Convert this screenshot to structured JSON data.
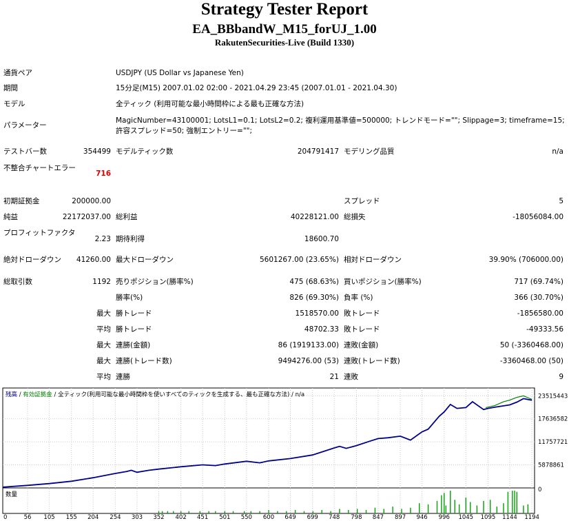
{
  "header": {
    "title": "Strategy Tester Report",
    "ea_name": "EA_BBbandW_M15_forUJ_1.00",
    "server": "RakutenSecurities-Live (Build 1330)"
  },
  "info": {
    "symbol_label": "通貨ペア",
    "symbol_value": "USDJPY (US Dollar vs Japanese Yen)",
    "period_label": "期間",
    "period_value": "15分足(M15) 2007.01.02 02:00 - 2021.04.29 23:45 (2007.01.01 - 2021.04.30)",
    "model_label": "モデル",
    "model_value": "全ティック (利用可能な最小時間枠による最も正確な方法)",
    "params_label": "パラメーター",
    "params_value": "MagicNumber=43100001; LotsL1=0.1; LotsL2=0.2; 複利運用基準値=500000; トレンドモード=\"\"; Slippage=3; timeframe=15; 許容スプレッド=50; 強制エントリー=\"\";"
  },
  "stats": {
    "bars_label": "テストバー数",
    "bars_value": "354499",
    "ticks_label": "モデルティック数",
    "ticks_value": "204791417",
    "quality_label": "モデリング品質",
    "quality_value": "n/a",
    "mismatch_label": "不整合チャートエラー",
    "mismatch_value": "716",
    "deposit_label": "初期証拠金",
    "deposit_value": "200000.00",
    "spread_label": "スプレッド",
    "spread_value": "5",
    "net_label": "純益",
    "net_value": "22172037.00",
    "gross_profit_label": "総利益",
    "gross_profit_value": "40228121.00",
    "gross_loss_label": "総損失",
    "gross_loss_value": "-18056084.00",
    "pf_label": "プロフィットファクタ",
    "pf_value": "2.23",
    "payoff_label": "期待利得",
    "payoff_value": "18600.70",
    "abs_dd_label": "絶対ドローダウン",
    "abs_dd_value": "41260.00",
    "max_dd_label": "最大ドローダウン",
    "max_dd_value": "5601267.00 (23.65%)",
    "rel_dd_label": "相対ドローダウン",
    "rel_dd_value": "39.90% (706000.00)",
    "trades_label": "総取引数",
    "trades_value": "1192",
    "short_label": "売りポジション(勝率%)",
    "short_value": "475 (68.63%)",
    "long_label": "買いポジション(勝率%)",
    "long_value": "717 (69.74%)",
    "winrate_label": "勝率(%)",
    "winrate_value": "826 (69.30%)",
    "lossrate_label": "負率 (%)",
    "lossrate_value": "366 (30.70%)",
    "max_prefix": "最大",
    "avg_prefix": "平均",
    "largest_win_label": "勝トレード",
    "largest_win_value": "1518570.00",
    "largest_loss_label": "敗トレード",
    "largest_loss_value": "-1856580.00",
    "avg_win_label": "勝トレード",
    "avg_win_value": "48702.33",
    "avg_loss_label": "敗トレード",
    "avg_loss_value": "-49333.56",
    "max_cons_wins_label": "連勝(金額)",
    "max_cons_wins_value": "86 (1919133.00)",
    "max_cons_losses_label": "連敗(金額)",
    "max_cons_losses_value": "50 (-3360468.00)",
    "max_cons_profit_label": "連勝(トレード数)",
    "max_cons_profit_value": "9494276.00 (53)",
    "max_cons_loss_label": "連敗(トレード数)",
    "max_cons_loss_value": "-3360468.00 (50)",
    "avg_cons_wins_label": "連勝",
    "avg_cons_wins_value": "21",
    "avg_cons_losses_label": "連敗",
    "avg_cons_losses_value": "9"
  },
  "chart_data": {
    "type": "line",
    "legend": {
      "balance": "残高",
      "sep1": " / ",
      "equity": "有効証拠金",
      "sep2": " / ",
      "model": "全ティック(利用可能な最小時間枠を使いすべてのティックを生成する、最も正確な方法)",
      "sep3": " / ",
      "quality": "n/a"
    },
    "volume_label": "数量",
    "colors": {
      "balance": "#00008b",
      "equity": "#008000",
      "volume": "#00a000",
      "grid": "#c8c8c8"
    },
    "y_ticks": [
      0,
      5878861,
      11757721,
      17636582,
      23515443
    ],
    "x_ticks": [
      0,
      56,
      105,
      155,
      204,
      254,
      303,
      352,
      402,
      451,
      501,
      550,
      600,
      649,
      699,
      748,
      798,
      847,
      897,
      946,
      996,
      1045,
      1095,
      1144,
      1194
    ],
    "xlim": [
      0,
      1200
    ],
    "ylim": [
      0,
      25500000
    ],
    "balance": [
      [
        0,
        200000
      ],
      [
        56,
        650000
      ],
      [
        105,
        1100000
      ],
      [
        155,
        1700000
      ],
      [
        204,
        2600000
      ],
      [
        254,
        3700000
      ],
      [
        280,
        4200000
      ],
      [
        290,
        4500000
      ],
      [
        303,
        4000000
      ],
      [
        330,
        4500000
      ],
      [
        352,
        4800000
      ],
      [
        402,
        5400000
      ],
      [
        451,
        5900000
      ],
      [
        480,
        5700000
      ],
      [
        501,
        6100000
      ],
      [
        550,
        6800000
      ],
      [
        580,
        6400000
      ],
      [
        600,
        6900000
      ],
      [
        649,
        7500000
      ],
      [
        699,
        8400000
      ],
      [
        748,
        10200000
      ],
      [
        760,
        10600000
      ],
      [
        775,
        10100000
      ],
      [
        798,
        10800000
      ],
      [
        830,
        12000000
      ],
      [
        847,
        12600000
      ],
      [
        870,
        12800000
      ],
      [
        897,
        13200000
      ],
      [
        920,
        12200000
      ],
      [
        946,
        14300000
      ],
      [
        960,
        15000000
      ],
      [
        985,
        18300000
      ],
      [
        996,
        19400000
      ],
      [
        1010,
        21300000
      ],
      [
        1025,
        20300000
      ],
      [
        1045,
        20500000
      ],
      [
        1060,
        22000000
      ],
      [
        1085,
        20000000
      ],
      [
        1095,
        20300000
      ],
      [
        1110,
        20600000
      ],
      [
        1144,
        21200000
      ],
      [
        1160,
        21900000
      ],
      [
        1175,
        22800000
      ],
      [
        1194,
        22372037
      ]
    ],
    "equity": [
      [
        1090,
        20500000
      ],
      [
        1110,
        21000000
      ],
      [
        1130,
        22000000
      ],
      [
        1144,
        22400000
      ],
      [
        1160,
        23100000
      ],
      [
        1175,
        23500000
      ],
      [
        1194,
        22600000
      ]
    ],
    "volume": [
      [
        352,
        0.1
      ],
      [
        360,
        0.1
      ],
      [
        372,
        0.1
      ],
      [
        385,
        0.1
      ],
      [
        402,
        0.1
      ],
      [
        420,
        0.1
      ],
      [
        445,
        0.1
      ],
      [
        465,
        0.1
      ],
      [
        480,
        0.1
      ],
      [
        501,
        0.1
      ],
      [
        520,
        0.1
      ],
      [
        545,
        0.1
      ],
      [
        560,
        0.1
      ],
      [
        580,
        0.1
      ],
      [
        600,
        0.15
      ],
      [
        620,
        0.1
      ],
      [
        640,
        0.1
      ],
      [
        660,
        0.15
      ],
      [
        680,
        0.1
      ],
      [
        700,
        0.1
      ],
      [
        720,
        0.15
      ],
      [
        740,
        0.1
      ],
      [
        760,
        0.2
      ],
      [
        780,
        0.15
      ],
      [
        800,
        0.2
      ],
      [
        820,
        0.15
      ],
      [
        840,
        0.25
      ],
      [
        860,
        0.2
      ],
      [
        880,
        0.3
      ],
      [
        900,
        0.2
      ],
      [
        920,
        0.25
      ],
      [
        940,
        0.45
      ],
      [
        960,
        0.4
      ],
      [
        980,
        0.55
      ],
      [
        990,
        0.8
      ],
      [
        996,
        0.9
      ],
      [
        1000,
        0.35
      ],
      [
        1010,
        1.0
      ],
      [
        1020,
        0.6
      ],
      [
        1030,
        0.4
      ],
      [
        1045,
        0.7
      ],
      [
        1055,
        0.5
      ],
      [
        1070,
        0.35
      ],
      [
        1085,
        0.55
      ],
      [
        1100,
        0.6
      ],
      [
        1115,
        0.3
      ],
      [
        1130,
        0.45
      ],
      [
        1140,
        0.95
      ],
      [
        1150,
        1.0
      ],
      [
        1155,
        1.0
      ],
      [
        1160,
        0.95
      ],
      [
        1175,
        0.35
      ],
      [
        1185,
        0.4
      ]
    ]
  }
}
